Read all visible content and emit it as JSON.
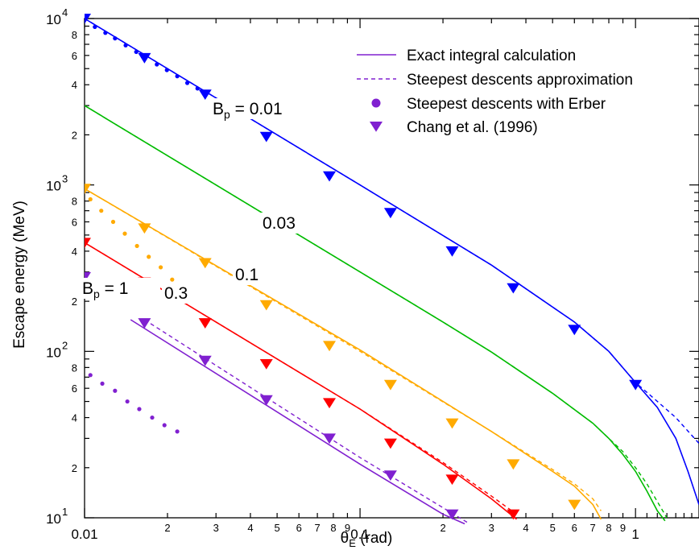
{
  "chart_data": {
    "type": "line",
    "xlabel_main": "θ",
    "xlabel_sub": "E",
    "xlabel_unit": " (rad)",
    "ylabel": "Escape energy (MeV)",
    "xscale": "log",
    "yscale": "log",
    "xlim": [
      0.01,
      1.7
    ],
    "ylim": [
      10,
      10000
    ],
    "x_ticks": [
      {
        "v": 0.01,
        "label": "0.01",
        "major": true
      },
      {
        "v": 0.02,
        "label": "2"
      },
      {
        "v": 0.03,
        "label": "3"
      },
      {
        "v": 0.04,
        "label": "4"
      },
      {
        "v": 0.05,
        "label": "5"
      },
      {
        "v": 0.06,
        "label": "6"
      },
      {
        "v": 0.07,
        "label": "7"
      },
      {
        "v": 0.08,
        "label": "8"
      },
      {
        "v": 0.09,
        "label": "9"
      },
      {
        "v": 0.1,
        "label": "0.1",
        "major": true
      },
      {
        "v": 0.2,
        "label": "2"
      },
      {
        "v": 0.3,
        "label": "3"
      },
      {
        "v": 0.4,
        "label": "4"
      },
      {
        "v": 0.5,
        "label": "5"
      },
      {
        "v": 0.6,
        "label": "6"
      },
      {
        "v": 0.7,
        "label": "7"
      },
      {
        "v": 0.8,
        "label": "8"
      },
      {
        "v": 0.9,
        "label": "9"
      },
      {
        "v": 1,
        "label": "1",
        "major": true
      }
    ],
    "y_ticks": [
      {
        "v": 10,
        "base": "10",
        "exp": "1",
        "major": true
      },
      {
        "v": 20,
        "label": "2"
      },
      {
        "v": 40,
        "label": "4"
      },
      {
        "v": 60,
        "label": "6"
      },
      {
        "v": 80,
        "label": "8"
      },
      {
        "v": 100,
        "base": "10",
        "exp": "2",
        "major": true
      },
      {
        "v": 200,
        "label": "2"
      },
      {
        "v": 400,
        "label": "4"
      },
      {
        "v": 600,
        "label": "6"
      },
      {
        "v": 800,
        "label": "8"
      },
      {
        "v": 1000,
        "base": "10",
        "exp": "3",
        "major": true
      },
      {
        "v": 2000,
        "label": "2"
      },
      {
        "v": 4000,
        "label": "4"
      },
      {
        "v": 6000,
        "label": "6"
      },
      {
        "v": 8000,
        "label": "8"
      },
      {
        "v": 10000,
        "base": "10",
        "exp": "4",
        "major": true
      }
    ],
    "legend": {
      "placement": "top-right",
      "entries": [
        {
          "label": "Exact integral calculation",
          "style": "solid"
        },
        {
          "label": "Steepest descents approximation",
          "style": "dashed"
        },
        {
          "label": "Steepest descents with Erber",
          "style": "dot"
        },
        {
          "label": "Chang et al.  (1996)",
          "style": "triangle"
        }
      ]
    },
    "annotations": [
      {
        "id": "bp001",
        "text": "0.01",
        "prefix": "B",
        "sub": "p",
        "mid": " = "
      },
      {
        "id": "bp003",
        "text": "0.03"
      },
      {
        "id": "bp01",
        "text": "0.1"
      },
      {
        "id": "bp03",
        "text": "0.3"
      },
      {
        "id": "bp1",
        "text": "1",
        "prefix": "B",
        "sub": "p",
        "mid": " = "
      }
    ],
    "series": [
      {
        "name": "0.01",
        "color": "#0000ff",
        "exact": [
          [
            0.01,
            10000
          ],
          [
            0.1,
            1000
          ],
          [
            0.3,
            330
          ],
          [
            0.6,
            150
          ],
          [
            0.8,
            100
          ],
          [
            1.0,
            65
          ],
          [
            1.2,
            46
          ],
          [
            1.4,
            30
          ],
          [
            1.55,
            19
          ],
          [
            1.7,
            12
          ]
        ],
        "approx": [
          [
            0.01,
            10000
          ],
          [
            0.1,
            1000
          ],
          [
            0.3,
            330
          ],
          [
            0.6,
            150
          ],
          [
            0.8,
            100
          ],
          [
            1.0,
            65
          ],
          [
            1.2,
            50
          ],
          [
            1.4,
            40
          ],
          [
            1.7,
            28
          ]
        ],
        "erber": [
          [
            0.0109,
            8900
          ],
          [
            0.0119,
            8200
          ],
          [
            0.0129,
            7600
          ],
          [
            0.0141,
            6900
          ],
          [
            0.0154,
            6300
          ],
          [
            0.0183,
            5300
          ],
          [
            0.0199,
            4900
          ],
          [
            0.0217,
            4500
          ],
          [
            0.0236,
            4100
          ],
          [
            0.0257,
            3800
          ]
        ],
        "chang": [
          [
            0.01,
            10000
          ],
          [
            0.0165,
            5800
          ],
          [
            0.0274,
            3500
          ],
          [
            0.0457,
            1950
          ],
          [
            0.0774,
            1130
          ],
          [
            0.129,
            680
          ],
          [
            0.216,
            400
          ],
          [
            0.36,
            240
          ],
          [
            0.6,
            135
          ],
          [
            1.0,
            63
          ]
        ]
      },
      {
        "name": "0.03",
        "color": "#00bb00",
        "exact": [
          [
            0.01,
            3000
          ],
          [
            0.1,
            300
          ],
          [
            0.2,
            150
          ],
          [
            0.3,
            99
          ],
          [
            0.5,
            56
          ],
          [
            0.7,
            37
          ],
          [
            0.8,
            30
          ],
          [
            0.9,
            24
          ],
          [
            1.0,
            19
          ],
          [
            1.1,
            14.5
          ],
          [
            1.2,
            11
          ],
          [
            1.28,
            9.6
          ]
        ],
        "approx": [
          [
            0.01,
            3000
          ],
          [
            0.1,
            300
          ],
          [
            0.2,
            150
          ],
          [
            0.3,
            99
          ],
          [
            0.5,
            56
          ],
          [
            0.7,
            37
          ],
          [
            0.8,
            30
          ],
          [
            0.9,
            25
          ],
          [
            1.0,
            20
          ],
          [
            1.1,
            16
          ],
          [
            1.2,
            12.5
          ],
          [
            1.3,
            10
          ]
        ]
      },
      {
        "name": "0.1",
        "color": "#ffaa00",
        "exact": [
          [
            0.01,
            950
          ],
          [
            0.1,
            102
          ],
          [
            0.3,
            33
          ],
          [
            0.5,
            19
          ],
          [
            0.6,
            15.5
          ],
          [
            0.7,
            12
          ],
          [
            0.75,
            9.8
          ]
        ],
        "approx": [
          [
            0.01,
            950
          ],
          [
            0.1,
            100
          ],
          [
            0.3,
            33
          ],
          [
            0.5,
            19.5
          ],
          [
            0.6,
            16
          ],
          [
            0.7,
            13
          ],
          [
            0.75,
            11
          ]
        ],
        "erber": [
          [
            0.0105,
            820
          ],
          [
            0.0115,
            700
          ],
          [
            0.0127,
            600
          ],
          [
            0.014,
            510
          ],
          [
            0.0155,
            430
          ],
          [
            0.0171,
            370
          ],
          [
            0.0189,
            320
          ],
          [
            0.0208,
            270
          ]
        ],
        "chang": [
          [
            0.01,
            950
          ],
          [
            0.0165,
            550
          ],
          [
            0.0274,
            340
          ],
          [
            0.0457,
            190
          ],
          [
            0.0774,
            108
          ],
          [
            0.129,
            63
          ],
          [
            0.216,
            37
          ],
          [
            0.36,
            21
          ],
          [
            0.6,
            12
          ]
        ]
      },
      {
        "name": "0.3",
        "color": "#ff0000",
        "exact": [
          [
            0.01,
            450
          ],
          [
            0.1,
            45
          ],
          [
            0.2,
            21
          ],
          [
            0.3,
            13
          ],
          [
            0.37,
            9.8
          ]
        ],
        "approx": [
          [
            0.01,
            450
          ],
          [
            0.1,
            45
          ],
          [
            0.2,
            21.5
          ],
          [
            0.3,
            13.5
          ],
          [
            0.37,
            10.5
          ]
        ],
        "chang": [
          [
            0.01,
            450
          ],
          [
            0.0165,
            260
          ],
          [
            0.0274,
            148
          ],
          [
            0.0457,
            84
          ],
          [
            0.0774,
            49
          ],
          [
            0.129,
            28
          ],
          [
            0.216,
            17
          ],
          [
            0.36,
            10.5
          ]
        ]
      },
      {
        "name": "1",
        "color": "#8020d0",
        "exact": [
          [
            0.0147,
            155
          ],
          [
            0.1,
            21
          ],
          [
            0.2,
            10.5
          ],
          [
            0.24,
            9.2
          ]
        ],
        "approx": [
          [
            0.0165,
            155
          ],
          [
            0.1,
            23
          ],
          [
            0.2,
            11.5
          ],
          [
            0.25,
            9.2
          ]
        ],
        "erber": [
          [
            0.0105,
            72
          ],
          [
            0.0116,
            64
          ],
          [
            0.0129,
            58
          ],
          [
            0.0143,
            50
          ],
          [
            0.0158,
            45
          ],
          [
            0.0176,
            40
          ],
          [
            0.0195,
            36
          ],
          [
            0.0217,
            33
          ]
        ],
        "chang": [
          [
            0.01,
            280
          ],
          [
            0.0165,
            148
          ],
          [
            0.0274,
            88
          ],
          [
            0.0457,
            51
          ],
          [
            0.0774,
            30
          ],
          [
            0.129,
            18
          ],
          [
            0.216,
            10.5
          ]
        ]
      }
    ]
  }
}
